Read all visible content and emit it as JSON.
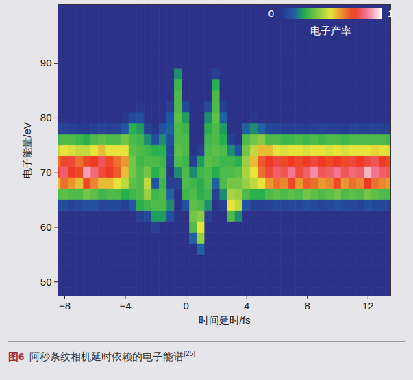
{
  "chart_data": {
    "type": "heatmap",
    "x_label": "时间延时/fs",
    "y_label": "电子能量/eV",
    "xlim": [
      -8.45,
      13.5
    ],
    "ylim": [
      47.4,
      100.8
    ],
    "xticks": [
      -8,
      -4,
      0,
      4,
      8,
      12
    ],
    "yticks": [
      50,
      60,
      70,
      80,
      90
    ],
    "colorbar": {
      "label": "电子产率",
      "range": [
        0,
        1
      ],
      "ticks": [
        0,
        1
      ]
    },
    "caption": {
      "label": "图6",
      "text": "阿秒条纹相机延时依赖的电子能谱",
      "reference": "[25]"
    },
    "x": [
      -8.5,
      -8,
      -7.5,
      -7,
      -6.5,
      -6,
      -5.5,
      -5,
      -4.5,
      -4,
      -3.5,
      -3,
      -2.5,
      -2,
      -1.5,
      -1,
      -0.5,
      0,
      0.5,
      1,
      1.5,
      2,
      2.5,
      3,
      3.5,
      4,
      4.5,
      5,
      5.5,
      6,
      6.5,
      7,
      7.5,
      8,
      8.5,
      9,
      9.5,
      10,
      10.5,
      11,
      11.5,
      12,
      12.5,
      13,
      13.5
    ],
    "y": [
      48,
      50,
      52,
      54,
      56,
      58,
      60,
      62,
      64,
      66,
      68,
      70,
      72,
      74,
      76,
      78,
      80,
      82,
      84,
      86,
      88,
      90,
      92,
      94,
      96,
      98,
      100
    ],
    "z": [
      [
        0,
        0,
        0,
        0,
        0,
        0,
        0,
        0,
        0.08,
        0.3,
        0.55,
        0.75,
        0.65,
        0.45,
        0.28,
        0.05,
        0,
        0,
        0,
        0,
        0,
        0,
        0,
        0,
        0,
        0,
        0
      ],
      [
        0,
        0,
        0,
        0,
        0,
        0,
        0,
        0,
        0.1,
        0.32,
        0.65,
        0.8,
        0.7,
        0.5,
        0.3,
        0.06,
        0,
        0,
        0,
        0,
        0,
        0,
        0,
        0,
        0,
        0,
        0
      ],
      [
        0,
        0,
        0,
        0,
        0,
        0,
        0,
        0,
        0.06,
        0.3,
        0.6,
        0.72,
        0.75,
        0.48,
        0.3,
        0.05,
        0,
        0,
        0,
        0,
        0,
        0,
        0,
        0,
        0,
        0,
        0
      ],
      [
        0,
        0,
        0,
        0,
        0,
        0,
        0,
        0,
        0.08,
        0.3,
        0.55,
        0.7,
        0.65,
        0.45,
        0.28,
        0.04,
        0,
        0,
        0,
        0,
        0,
        0,
        0,
        0,
        0,
        0,
        0
      ],
      [
        0,
        0,
        0,
        0,
        0,
        0,
        0,
        0,
        0.1,
        0.35,
        0.7,
        0.9,
        0.7,
        0.45,
        0.25,
        0.03,
        0,
        0,
        0,
        0,
        0,
        0,
        0,
        0,
        0,
        0,
        0
      ],
      [
        0,
        0,
        0,
        0,
        0,
        0,
        0,
        0,
        0.1,
        0.32,
        0.62,
        0.82,
        0.72,
        0.5,
        0.3,
        0.05,
        0,
        0,
        0,
        0,
        0,
        0,
        0,
        0,
        0,
        0,
        0
      ],
      [
        0,
        0,
        0,
        0,
        0,
        0,
        0,
        0,
        0.06,
        0.28,
        0.55,
        0.75,
        0.78,
        0.55,
        0.32,
        0.06,
        0,
        0,
        0,
        0,
        0,
        0,
        0,
        0,
        0,
        0,
        0
      ],
      [
        0,
        0,
        0,
        0,
        0,
        0,
        0,
        0,
        0.08,
        0.3,
        0.55,
        0.72,
        0.7,
        0.5,
        0.3,
        0.05,
        0,
        0,
        0,
        0,
        0,
        0,
        0,
        0,
        0,
        0,
        0
      ],
      [
        0,
        0,
        0,
        0,
        0,
        0,
        0,
        0,
        0.08,
        0.3,
        0.5,
        0.68,
        0.65,
        0.5,
        0.3,
        0.06,
        0,
        0,
        0,
        0,
        0,
        0,
        0,
        0,
        0,
        0,
        0
      ],
      [
        0,
        0,
        0,
        0,
        0,
        0,
        0,
        0,
        0.05,
        0.25,
        0.45,
        0.55,
        0.6,
        0.5,
        0.35,
        0.12,
        0.02,
        0,
        0,
        0,
        0,
        0,
        0,
        0,
        0,
        0,
        0
      ],
      [
        0,
        0,
        0,
        0,
        0,
        0,
        0,
        0,
        0.12,
        0.28,
        0.32,
        0.35,
        0.35,
        0.32,
        0.3,
        0.25,
        0.08,
        0,
        0,
        0,
        0,
        0,
        0,
        0,
        0,
        0,
        0
      ],
      [
        0,
        0,
        0,
        0,
        0,
        0,
        0,
        0.05,
        0.25,
        0.3,
        0.3,
        0.3,
        0.28,
        0.3,
        0.28,
        0.22,
        0.1,
        0.02,
        0,
        0,
        0,
        0,
        0,
        0,
        0,
        0,
        0
      ],
      [
        0,
        0,
        0,
        0,
        0,
        0,
        0,
        0.08,
        0.28,
        0.4,
        0.45,
        0.35,
        0.3,
        0.28,
        0.2,
        0.05,
        0,
        0,
        0,
        0,
        0,
        0,
        0,
        0,
        0,
        0,
        0
      ],
      [
        0,
        0,
        0,
        0,
        0,
        0,
        0.05,
        0.22,
        0.3,
        0.28,
        0.12,
        0.25,
        0.3,
        0.25,
        0.1,
        0.02,
        0,
        0,
        0,
        0,
        0,
        0,
        0,
        0,
        0,
        0,
        0
      ],
      [
        0,
        0,
        0,
        0,
        0,
        0,
        0,
        0.22,
        0.3,
        0.3,
        0.28,
        0.3,
        0.28,
        0.25,
        0.2,
        0.1,
        0,
        0,
        0,
        0,
        0,
        0,
        0,
        0,
        0,
        0,
        0
      ],
      [
        0,
        0,
        0,
        0,
        0,
        0,
        0,
        0.1,
        0.2,
        0.15,
        0.05,
        0.02,
        0.05,
        0.08,
        0.1,
        0.15,
        0.12,
        0.05,
        0,
        0,
        0,
        0,
        0,
        0,
        0,
        0,
        0
      ],
      [
        0,
        0,
        0,
        0,
        0,
        0,
        0,
        0,
        0,
        0,
        0.05,
        0.2,
        0.3,
        0.32,
        0.3,
        0.3,
        0.32,
        0.3,
        0.3,
        0.28,
        0.2,
        0,
        0,
        0,
        0,
        0,
        0
      ],
      [
        0,
        0,
        0,
        0,
        0,
        0,
        0,
        0,
        0.1,
        0.28,
        0.3,
        0.3,
        0.28,
        0.3,
        0.3,
        0.28,
        0.22,
        0.08,
        0,
        0,
        0,
        0,
        0,
        0,
        0,
        0,
        0
      ],
      [
        0,
        0,
        0,
        0,
        0,
        0.15,
        0.3,
        0.35,
        0.32,
        0.3,
        0.28,
        0.2,
        0.05,
        0,
        0,
        0,
        0,
        0,
        0,
        0,
        0,
        0,
        0,
        0,
        0,
        0,
        0
      ],
      [
        0,
        0,
        0,
        0,
        0.15,
        0.4,
        0.5,
        0.38,
        0.3,
        0.25,
        0.25,
        0.28,
        0.22,
        0.05,
        0,
        0,
        0,
        0,
        0,
        0,
        0,
        0,
        0,
        0,
        0,
        0,
        0
      ],
      [
        0,
        0,
        0,
        0,
        0,
        0,
        0,
        0.05,
        0.2,
        0.28,
        0.3,
        0.3,
        0.32,
        0.3,
        0.28,
        0.25,
        0.2,
        0.08,
        0,
        0,
        0,
        0,
        0,
        0,
        0,
        0,
        0
      ],
      [
        0,
        0,
        0,
        0,
        0,
        0,
        0,
        0,
        0,
        0.05,
        0.15,
        0.25,
        0.3,
        0.32,
        0.3,
        0.3,
        0.32,
        0.3,
        0.3,
        0.25,
        0.05,
        0,
        0,
        0,
        0,
        0,
        0
      ],
      [
        0,
        0,
        0,
        0,
        0,
        0,
        0,
        0,
        0.05,
        0.2,
        0.3,
        0.3,
        0.28,
        0.3,
        0.25,
        0.22,
        0.15,
        0.05,
        0,
        0,
        0,
        0,
        0,
        0,
        0,
        0,
        0
      ],
      [
        0,
        0,
        0,
        0,
        0,
        0,
        0,
        0.3,
        0.5,
        0.42,
        0.35,
        0.3,
        0.28,
        0.2,
        0.05,
        0,
        0,
        0,
        0,
        0,
        0,
        0,
        0,
        0,
        0,
        0,
        0
      ],
      [
        0,
        0,
        0,
        0,
        0,
        0,
        0,
        0.2,
        0.45,
        0.4,
        0.35,
        0.32,
        0.25,
        0.1,
        0,
        0,
        0,
        0,
        0,
        0,
        0,
        0,
        0,
        0,
        0,
        0,
        0
      ],
      [
        0,
        0,
        0,
        0,
        0,
        0,
        0,
        0,
        0.12,
        0.3,
        0.4,
        0.42,
        0.4,
        0.35,
        0.3,
        0.15,
        0,
        0,
        0,
        0,
        0,
        0,
        0,
        0,
        0,
        0,
        0
      ],
      [
        0,
        0,
        0,
        0,
        0,
        0,
        0,
        0,
        0.05,
        0.25,
        0.45,
        0.5,
        0.55,
        0.45,
        0.35,
        0.2,
        0.02,
        0,
        0,
        0,
        0,
        0,
        0,
        0,
        0,
        0,
        0
      ],
      [
        0,
        0,
        0,
        0,
        0,
        0,
        0,
        0,
        0.05,
        0.25,
        0.5,
        0.65,
        0.68,
        0.55,
        0.38,
        0.15,
        0,
        0,
        0,
        0,
        0,
        0,
        0,
        0,
        0,
        0,
        0
      ],
      [
        0,
        0,
        0,
        0,
        0,
        0,
        0,
        0,
        0.06,
        0.3,
        0.6,
        0.75,
        0.72,
        0.55,
        0.3,
        0.08,
        0,
        0,
        0,
        0,
        0,
        0,
        0,
        0,
        0,
        0,
        0
      ],
      [
        0,
        0,
        0,
        0,
        0,
        0,
        0,
        0,
        0.08,
        0.32,
        0.65,
        0.8,
        0.75,
        0.5,
        0.3,
        0.06,
        0,
        0,
        0,
        0,
        0,
        0,
        0,
        0,
        0,
        0,
        0
      ],
      [
        0,
        0,
        0,
        0,
        0,
        0,
        0,
        0,
        0.06,
        0.3,
        0.62,
        0.78,
        0.7,
        0.48,
        0.28,
        0.05,
        0,
        0,
        0,
        0,
        0,
        0,
        0,
        0,
        0,
        0,
        0
      ],
      [
        0,
        0,
        0,
        0,
        0,
        0,
        0,
        0,
        0.08,
        0.32,
        0.7,
        0.85,
        0.72,
        0.5,
        0.28,
        0.05,
        0,
        0,
        0,
        0,
        0,
        0,
        0,
        0,
        0,
        0,
        0
      ],
      [
        0,
        0,
        0,
        0,
        0,
        0,
        0,
        0,
        0.08,
        0.3,
        0.6,
        0.75,
        0.7,
        0.5,
        0.3,
        0.05,
        0,
        0,
        0,
        0,
        0,
        0,
        0,
        0,
        0,
        0,
        0
      ],
      [
        0,
        0,
        0,
        0,
        0,
        0,
        0,
        0,
        0.1,
        0.35,
        0.68,
        0.8,
        0.72,
        0.48,
        0.28,
        0.04,
        0,
        0,
        0,
        0,
        0,
        0,
        0,
        0,
        0,
        0,
        0
      ],
      [
        0,
        0,
        0,
        0,
        0,
        0,
        0,
        0,
        0.08,
        0.32,
        0.65,
        0.88,
        0.75,
        0.5,
        0.3,
        0.05,
        0,
        0,
        0,
        0,
        0,
        0,
        0,
        0,
        0,
        0,
        0
      ],
      [
        0,
        0,
        0,
        0,
        0,
        0,
        0,
        0,
        0.06,
        0.3,
        0.6,
        0.78,
        0.72,
        0.5,
        0.28,
        0.06,
        0,
        0,
        0,
        0,
        0,
        0,
        0,
        0,
        0,
        0,
        0
      ],
      [
        0,
        0,
        0,
        0,
        0,
        0,
        0,
        0,
        0.08,
        0.32,
        0.62,
        0.8,
        0.7,
        0.48,
        0.3,
        0.05,
        0,
        0,
        0,
        0,
        0,
        0,
        0,
        0,
        0,
        0,
        0
      ],
      [
        0,
        0,
        0,
        0,
        0,
        0,
        0,
        0,
        0.1,
        0.35,
        0.7,
        0.85,
        0.72,
        0.5,
        0.3,
        0.05,
        0,
        0,
        0,
        0,
        0,
        0,
        0,
        0,
        0,
        0,
        0
      ],
      [
        0,
        0,
        0,
        0,
        0,
        0,
        0,
        0,
        0.08,
        0.3,
        0.6,
        0.78,
        0.7,
        0.48,
        0.28,
        0.04,
        0,
        0,
        0,
        0,
        0,
        0,
        0,
        0,
        0,
        0,
        0
      ],
      [
        0,
        0,
        0,
        0,
        0,
        0,
        0,
        0,
        0.08,
        0.32,
        0.65,
        0.82,
        0.75,
        0.5,
        0.3,
        0.06,
        0,
        0,
        0,
        0,
        0,
        0,
        0,
        0,
        0,
        0,
        0
      ],
      [
        0,
        0,
        0,
        0,
        0,
        0,
        0,
        0,
        0.06,
        0.3,
        0.62,
        0.8,
        0.72,
        0.5,
        0.3,
        0.05,
        0,
        0,
        0,
        0,
        0,
        0,
        0,
        0,
        0,
        0,
        0
      ],
      [
        0,
        0,
        0,
        0,
        0,
        0,
        0,
        0,
        0.1,
        0.35,
        0.72,
        0.92,
        0.75,
        0.5,
        0.3,
        0.05,
        0,
        0,
        0,
        0,
        0,
        0,
        0,
        0,
        0,
        0,
        0
      ],
      [
        0,
        0,
        0,
        0,
        0,
        0,
        0,
        0,
        0.08,
        0.32,
        0.65,
        0.85,
        0.78,
        0.52,
        0.3,
        0.06,
        0,
        0,
        0,
        0,
        0,
        0,
        0,
        0,
        0,
        0,
        0
      ],
      [
        0,
        0,
        0,
        0,
        0,
        0,
        0,
        0,
        0.08,
        0.3,
        0.62,
        0.8,
        0.72,
        0.5,
        0.3,
        0.05,
        0,
        0,
        0,
        0,
        0,
        0,
        0,
        0,
        0,
        0,
        0
      ],
      [
        0,
        0,
        0,
        0,
        0,
        0,
        0,
        0,
        0.06,
        0.3,
        0.6,
        0.78,
        0.7,
        0.48,
        0.28,
        0.05,
        0,
        0,
        0,
        0,
        0,
        0,
        0,
        0,
        0,
        0,
        0
      ]
    ]
  }
}
